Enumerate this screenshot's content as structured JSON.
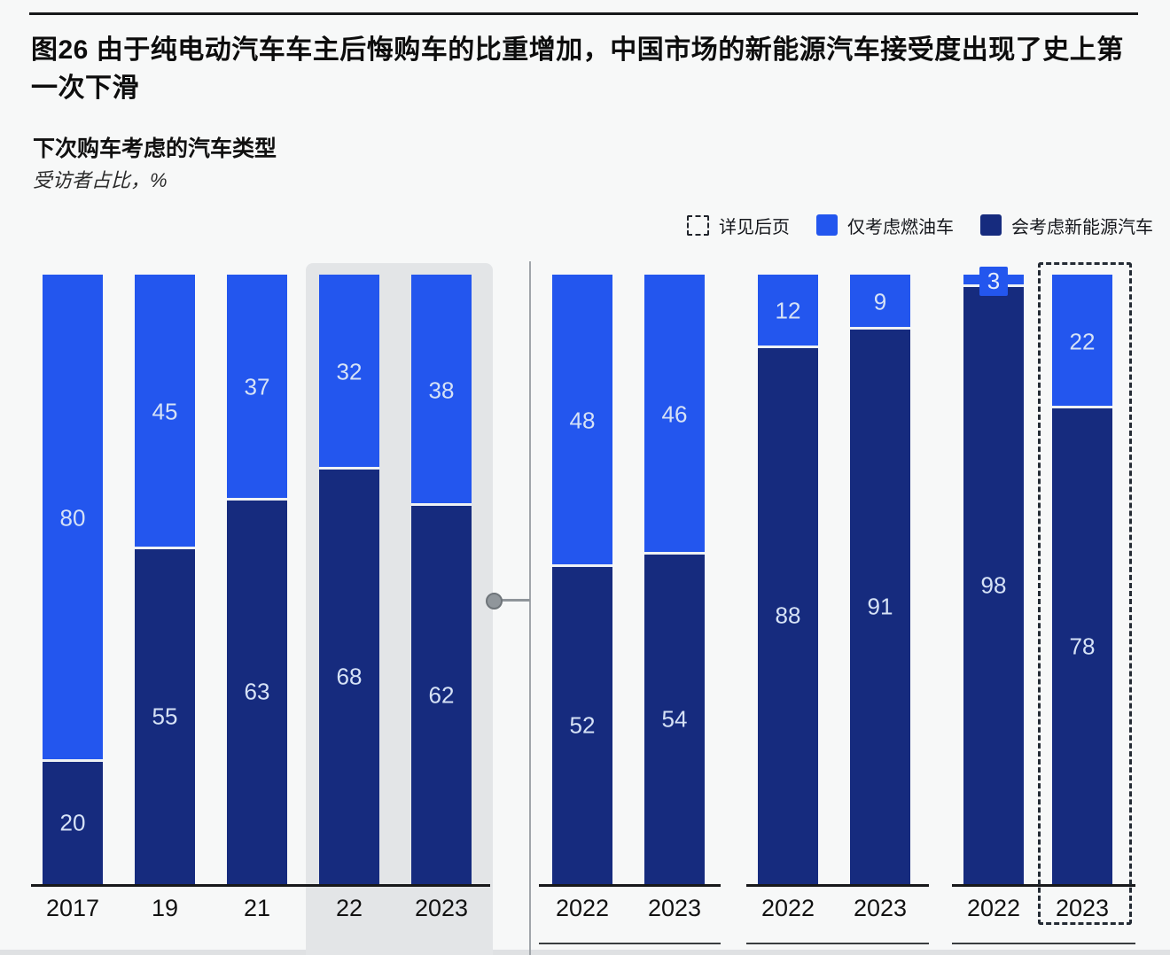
{
  "header": {
    "title": "图26 由于纯电动汽车车主后悔购车的比重增加，中国市场的新能源汽车接受度出现了史上第一次下滑",
    "subtitle": "下次购车考虑的汽车类型",
    "unit": "受访者占比，%"
  },
  "legend": {
    "items": [
      {
        "swatch": "dashed",
        "label": "详见后页"
      },
      {
        "swatch": "ice",
        "label": "仅考虑燃油车"
      },
      {
        "swatch": "nev",
        "label": "会考虑新能源汽车"
      }
    ]
  },
  "colors": {
    "ice_blue": "#2356ee",
    "nev_navy": "#162b7e",
    "highlight_gray": "#e3e5e7",
    "value_label": "#d6e2f6"
  },
  "chart_data": {
    "type": "bar",
    "stacked": true,
    "unit": "%",
    "ylim": [
      0,
      100
    ],
    "series_names": {
      "ice": "仅考虑燃油车",
      "nev": "会考虑新能源汽车"
    },
    "groups": [
      {
        "name": "group-1",
        "bars": [
          {
            "label": "2017",
            "nev": 20,
            "ice": 80
          },
          {
            "label": "19",
            "nev": 55,
            "ice": 45
          },
          {
            "label": "21",
            "nev": 63,
            "ice": 37
          },
          {
            "label": "22",
            "nev": 68,
            "ice": 32,
            "highlighted": true
          },
          {
            "label": "2023",
            "nev": 62,
            "ice": 38,
            "highlighted": true
          }
        ]
      },
      {
        "name": "group-2",
        "bars": [
          {
            "label": "2022",
            "nev": 52,
            "ice": 48
          },
          {
            "label": "2023",
            "nev": 54,
            "ice": 46
          }
        ]
      },
      {
        "name": "group-3",
        "bars": [
          {
            "label": "2022",
            "nev": 88,
            "ice": 12
          },
          {
            "label": "2023",
            "nev": 91,
            "ice": 9
          }
        ]
      },
      {
        "name": "group-4",
        "bars": [
          {
            "label": "2022",
            "nev": 98,
            "ice": 3,
            "ice_label_raised": true
          },
          {
            "label": "2023",
            "nev": 78,
            "ice": 22,
            "dashed_outline": true
          }
        ]
      }
    ]
  }
}
